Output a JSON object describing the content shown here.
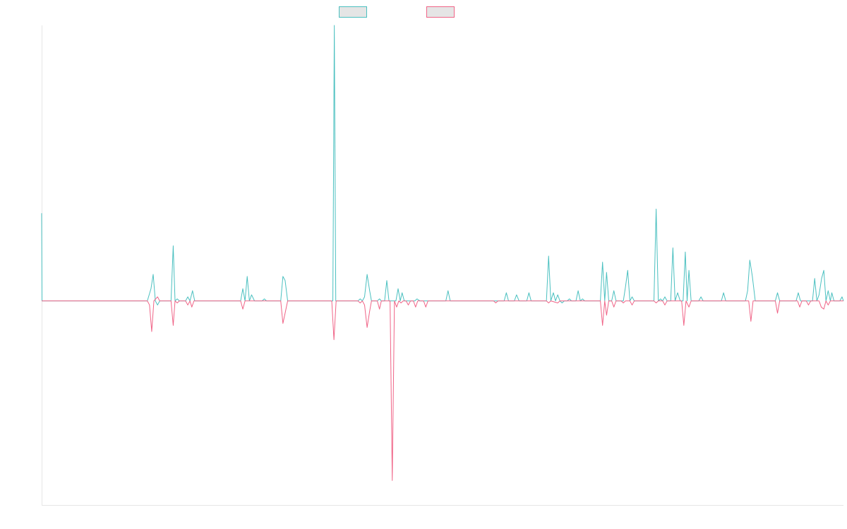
{
  "chart_data": {
    "type": "line",
    "title": "",
    "xlabel": "",
    "ylabel": "",
    "ylim": [
      -1,
      1.35
    ],
    "grid": false,
    "legend_position": "top-center",
    "series": [
      {
        "name": "",
        "color": "#4bc0c0",
        "fill_color": "#e5e5e5",
        "points": [
          [
            0,
            0.43
          ],
          [
            0.01,
            0
          ],
          [
            2.9,
            0
          ],
          [
            3.0,
            0.06
          ],
          [
            3.06,
            0.13
          ],
          [
            3.12,
            0
          ],
          [
            3.18,
            -0.02
          ],
          [
            3.24,
            0
          ],
          [
            3.28,
            0
          ],
          [
            3.55,
            0
          ],
          [
            3.61,
            0.27
          ],
          [
            3.66,
            0
          ],
          [
            3.72,
            0.01
          ],
          [
            3.78,
            0
          ],
          [
            3.95,
            0
          ],
          [
            4.01,
            0.02
          ],
          [
            4.07,
            0
          ],
          [
            4.14,
            0.05
          ],
          [
            4.2,
            0
          ],
          [
            5.46,
            0
          ],
          [
            5.52,
            0.06
          ],
          [
            5.58,
            0
          ],
          [
            5.64,
            0.12
          ],
          [
            5.7,
            0
          ],
          [
            5.76,
            0.03
          ],
          [
            5.84,
            0
          ],
          [
            6.05,
            0
          ],
          [
            6.11,
            0.01
          ],
          [
            6.17,
            0
          ],
          [
            6.56,
            0
          ],
          [
            6.62,
            0.12
          ],
          [
            6.68,
            0.1
          ],
          [
            6.75,
            0
          ],
          [
            7.99,
            0
          ],
          [
            8.03,
            1.35
          ],
          [
            8.07,
            0
          ],
          [
            8.68,
            0
          ],
          [
            8.74,
            0.01
          ],
          [
            8.8,
            0
          ],
          [
            8.86,
            0.02
          ],
          [
            8.93,
            0.13
          ],
          [
            9.0,
            0.05
          ],
          [
            9.05,
            0
          ],
          [
            9.21,
            0
          ],
          [
            9.27,
            0.01
          ],
          [
            9.32,
            0
          ],
          [
            9.41,
            0
          ],
          [
            9.47,
            0.1
          ],
          [
            9.53,
            0
          ],
          [
            9.72,
            0
          ],
          [
            9.78,
            0.06
          ],
          [
            9.84,
            0
          ],
          [
            9.89,
            0.04
          ],
          [
            9.95,
            0
          ],
          [
            10.24,
            0
          ],
          [
            10.3,
            0.01
          ],
          [
            10.38,
            0
          ],
          [
            11.09,
            0
          ],
          [
            11.15,
            0.05
          ],
          [
            11.21,
            0
          ],
          [
            12.69,
            0
          ],
          [
            12.75,
            0.04
          ],
          [
            12.81,
            0
          ],
          [
            12.97,
            0
          ],
          [
            13.03,
            0.03
          ],
          [
            13.1,
            0
          ],
          [
            13.31,
            0
          ],
          [
            13.37,
            0.04
          ],
          [
            13.43,
            0
          ],
          [
            13.85,
            0
          ],
          [
            13.91,
            0.22
          ],
          [
            13.97,
            0
          ],
          [
            14.04,
            0.04
          ],
          [
            14.1,
            0
          ],
          [
            14.16,
            0.03
          ],
          [
            14.22,
            0
          ],
          [
            14.28,
            -0.01
          ],
          [
            14.34,
            0
          ],
          [
            14.42,
            0
          ],
          [
            14.48,
            0.01
          ],
          [
            14.54,
            0
          ],
          [
            14.66,
            0
          ],
          [
            14.72,
            0.05
          ],
          [
            14.78,
            0
          ],
          [
            14.84,
            0.01
          ],
          [
            14.9,
            0
          ],
          [
            15.33,
            0
          ],
          [
            15.39,
            0.19
          ],
          [
            15.45,
            0
          ],
          [
            15.5,
            0.14
          ],
          [
            15.56,
            0
          ],
          [
            15.64,
            0
          ],
          [
            15.7,
            0.05
          ],
          [
            15.76,
            0
          ],
          [
            15.96,
            0
          ],
          [
            16.02,
            0.07
          ],
          [
            16.08,
            0.15
          ],
          [
            16.14,
            0
          ],
          [
            16.2,
            0.02
          ],
          [
            16.26,
            0
          ],
          [
            16.8,
            0
          ],
          [
            16.86,
            0.45
          ],
          [
            16.92,
            0
          ],
          [
            16.98,
            0.01
          ],
          [
            17.04,
            0
          ],
          [
            17.1,
            0.02
          ],
          [
            17.16,
            0
          ],
          [
            17.26,
            0
          ],
          [
            17.32,
            0.26
          ],
          [
            17.38,
            0
          ],
          [
            17.45,
            0.04
          ],
          [
            17.52,
            0
          ],
          [
            17.6,
            0
          ],
          [
            17.66,
            0.24
          ],
          [
            17.71,
            0
          ],
          [
            17.76,
            0.15
          ],
          [
            17.82,
            0
          ],
          [
            18.03,
            0
          ],
          [
            18.09,
            0.02
          ],
          [
            18.15,
            0
          ],
          [
            18.65,
            0
          ],
          [
            18.71,
            0.04
          ],
          [
            18.77,
            0
          ],
          [
            19.31,
            0
          ],
          [
            19.37,
            0.05
          ],
          [
            19.43,
            0.2
          ],
          [
            19.5,
            0.12
          ],
          [
            19.58,
            0
          ],
          [
            20.13,
            0
          ],
          [
            20.19,
            0.04
          ],
          [
            20.25,
            0
          ],
          [
            20.7,
            0
          ],
          [
            20.76,
            0.04
          ],
          [
            20.82,
            0
          ],
          [
            21.15,
            0
          ],
          [
            21.21,
            0.11
          ],
          [
            21.27,
            0
          ],
          [
            21.33,
            0.03
          ],
          [
            21.4,
            0.11
          ],
          [
            21.46,
            0.15
          ],
          [
            21.52,
            0
          ],
          [
            21.58,
            0.05
          ],
          [
            21.64,
            0
          ],
          [
            21.68,
            0.04
          ],
          [
            21.74,
            0
          ],
          [
            21.9,
            0
          ],
          [
            21.96,
            0.02
          ],
          [
            22.0,
            0
          ]
        ]
      },
      {
        "name": "",
        "color": "#f06487",
        "fill_color": "#e5e5e5",
        "points": [
          [
            0,
            0
          ],
          [
            2.9,
            0
          ],
          [
            2.96,
            -0.02
          ],
          [
            3.02,
            -0.15
          ],
          [
            3.08,
            0
          ],
          [
            3.18,
            0.02
          ],
          [
            3.24,
            0
          ],
          [
            3.55,
            0
          ],
          [
            3.61,
            -0.12
          ],
          [
            3.66,
            0
          ],
          [
            3.72,
            -0.01
          ],
          [
            3.78,
            0
          ],
          [
            3.95,
            0
          ],
          [
            4.01,
            -0.02
          ],
          [
            4.07,
            0
          ],
          [
            4.12,
            -0.03
          ],
          [
            4.18,
            0
          ],
          [
            5.46,
            0
          ],
          [
            5.52,
            -0.04
          ],
          [
            5.58,
            0
          ],
          [
            6.56,
            0
          ],
          [
            6.62,
            -0.11
          ],
          [
            6.68,
            -0.06
          ],
          [
            6.75,
            0
          ],
          [
            7.96,
            0
          ],
          [
            8.02,
            -0.19
          ],
          [
            8.08,
            0
          ],
          [
            8.68,
            0
          ],
          [
            8.74,
            -0.01
          ],
          [
            8.8,
            0
          ],
          [
            8.86,
            -0.02
          ],
          [
            8.93,
            -0.13
          ],
          [
            9.0,
            -0.05
          ],
          [
            9.05,
            0
          ],
          [
            9.21,
            0
          ],
          [
            9.27,
            -0.04
          ],
          [
            9.32,
            0
          ],
          [
            9.56,
            0
          ],
          [
            9.62,
            -0.88
          ],
          [
            9.68,
            0
          ],
          [
            9.74,
            -0.03
          ],
          [
            9.8,
            0
          ],
          [
            9.86,
            -0.01
          ],
          [
            9.92,
            0
          ],
          [
            10.0,
            0
          ],
          [
            10.06,
            -0.02
          ],
          [
            10.12,
            0
          ],
          [
            10.2,
            0
          ],
          [
            10.26,
            -0.03
          ],
          [
            10.32,
            0
          ],
          [
            10.48,
            0
          ],
          [
            10.54,
            -0.03
          ],
          [
            10.6,
            0
          ],
          [
            12.4,
            0
          ],
          [
            12.46,
            -0.01
          ],
          [
            12.52,
            0
          ],
          [
            13.85,
            0
          ],
          [
            13.91,
            -0.01
          ],
          [
            13.97,
            0
          ],
          [
            14.16,
            -0.01
          ],
          [
            14.22,
            0
          ],
          [
            15.33,
            0
          ],
          [
            15.39,
            -0.12
          ],
          [
            15.45,
            0
          ],
          [
            15.5,
            -0.07
          ],
          [
            15.56,
            0
          ],
          [
            15.64,
            0
          ],
          [
            15.7,
            -0.03
          ],
          [
            15.76,
            0
          ],
          [
            15.9,
            0
          ],
          [
            15.96,
            -0.01
          ],
          [
            16.02,
            0
          ],
          [
            16.14,
            0
          ],
          [
            16.2,
            -0.02
          ],
          [
            16.26,
            0
          ],
          [
            16.8,
            0
          ],
          [
            16.86,
            -0.01
          ],
          [
            16.92,
            0
          ],
          [
            17.04,
            0
          ],
          [
            17.1,
            -0.02
          ],
          [
            17.16,
            0
          ],
          [
            17.56,
            0
          ],
          [
            17.62,
            -0.12
          ],
          [
            17.68,
            0
          ],
          [
            17.76,
            -0.03
          ],
          [
            17.82,
            0
          ],
          [
            19.4,
            0
          ],
          [
            19.46,
            -0.1
          ],
          [
            19.52,
            0
          ],
          [
            20.13,
            0
          ],
          [
            20.19,
            -0.06
          ],
          [
            20.25,
            0
          ],
          [
            20.74,
            0
          ],
          [
            20.8,
            -0.03
          ],
          [
            20.86,
            0
          ],
          [
            20.98,
            0
          ],
          [
            21.04,
            -0.02
          ],
          [
            21.1,
            0
          ],
          [
            21.33,
            0
          ],
          [
            21.39,
            -0.03
          ],
          [
            21.46,
            -0.04
          ],
          [
            21.52,
            0
          ],
          [
            21.58,
            -0.02
          ],
          [
            21.64,
            0
          ],
          [
            22.0,
            0
          ]
        ]
      }
    ]
  }
}
